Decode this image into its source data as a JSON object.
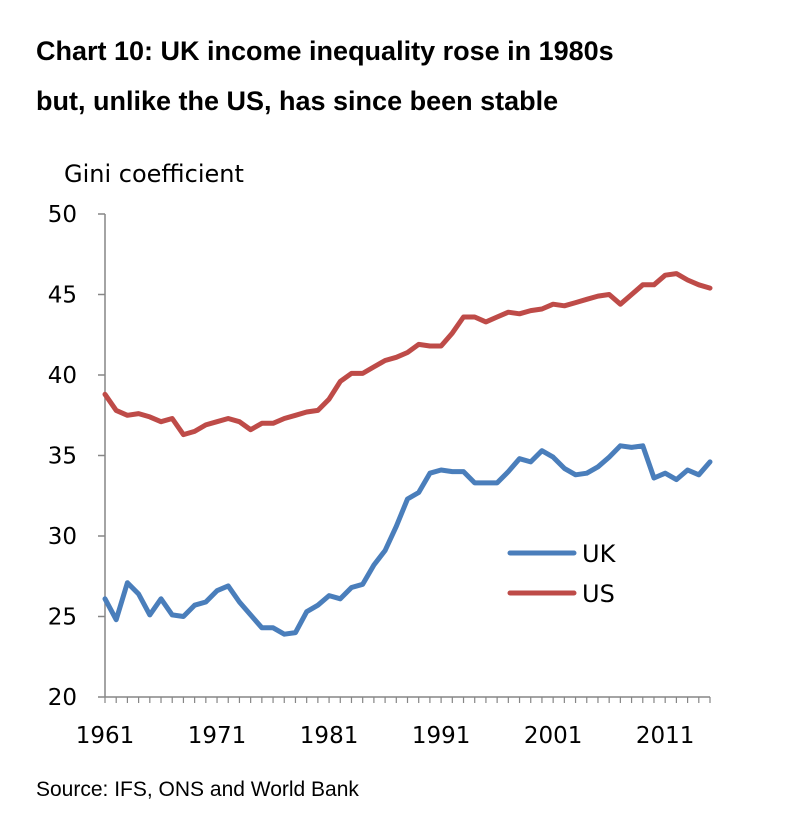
{
  "title_line1": "Chart 10:  UK income inequality rose in 1980s",
  "title_line2": "but, unlike the US, has since been stable",
  "source": "Source: IFS, ONS and World Bank",
  "colors": {
    "UK": "#4a7ebb",
    "US": "#be4b48",
    "axis": "#868686"
  },
  "chart_data": {
    "type": "line",
    "title": "Chart 10:  UK income inequality rose in 1980s but, unlike the US, has since been stable",
    "xlabel": "",
    "ylabel": "Gini coefficient",
    "xlim": [
      1961,
      2015
    ],
    "ylim": [
      20,
      50
    ],
    "yticks": [
      20,
      25,
      30,
      35,
      40,
      45,
      50
    ],
    "xtick_labels": [
      "1961",
      "1971",
      "1981",
      "1991",
      "2001",
      "2011"
    ],
    "legend_position": "lower-right",
    "grid": false,
    "x": [
      1961,
      1962,
      1963,
      1964,
      1965,
      1966,
      1967,
      1968,
      1969,
      1970,
      1971,
      1972,
      1973,
      1974,
      1975,
      1976,
      1977,
      1978,
      1979,
      1980,
      1981,
      1982,
      1983,
      1984,
      1985,
      1986,
      1987,
      1988,
      1989,
      1990,
      1991,
      1992,
      1993,
      1994,
      1995,
      1996,
      1997,
      1998,
      1999,
      2000,
      2001,
      2002,
      2003,
      2004,
      2005,
      2006,
      2007,
      2008,
      2009,
      2010,
      2011,
      2012,
      2013,
      2014,
      2015
    ],
    "series": [
      {
        "name": "UK",
        "values": [
          26.1,
          24.8,
          27.1,
          26.4,
          25.1,
          26.1,
          25.1,
          25.0,
          25.7,
          25.9,
          26.6,
          26.9,
          25.9,
          25.1,
          24.3,
          24.3,
          23.9,
          24.0,
          25.3,
          25.7,
          26.3,
          26.1,
          26.8,
          27.0,
          28.2,
          29.1,
          30.6,
          32.3,
          32.7,
          33.9,
          34.1,
          34.0,
          34.0,
          33.3,
          33.3,
          33.3,
          34.0,
          34.8,
          34.6,
          35.3,
          34.9,
          34.2,
          33.8,
          33.9,
          34.3,
          34.9,
          35.6,
          35.5,
          35.6,
          33.6,
          33.9,
          33.5,
          34.1,
          33.8,
          34.6
        ]
      },
      {
        "name": "US",
        "values": [
          38.8,
          37.8,
          37.5,
          37.6,
          37.4,
          37.1,
          37.3,
          36.3,
          36.5,
          36.9,
          37.1,
          37.3,
          37.1,
          36.6,
          37.0,
          37.0,
          37.3,
          37.5,
          37.7,
          37.8,
          38.5,
          39.6,
          40.1,
          40.1,
          40.5,
          40.9,
          41.1,
          41.4,
          41.9,
          41.8,
          41.8,
          42.6,
          43.6,
          43.6,
          43.3,
          43.6,
          43.9,
          43.8,
          44.0,
          44.1,
          44.4,
          44.3,
          44.5,
          44.7,
          44.9,
          45.0,
          44.4,
          45.0,
          45.6,
          45.6,
          46.2,
          46.3,
          45.9,
          45.6,
          45.4
        ]
      }
    ]
  }
}
